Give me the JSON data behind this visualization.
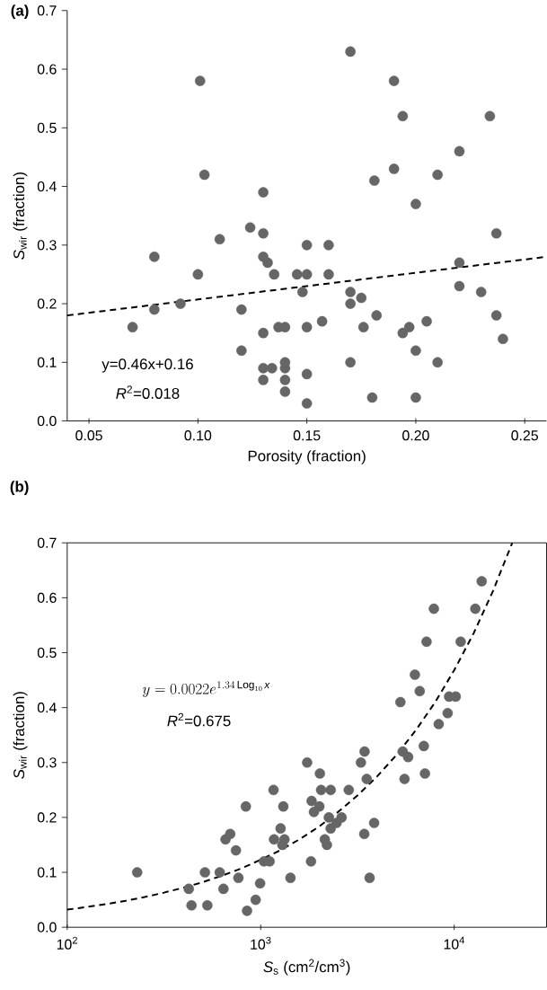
{
  "chart_data": [
    {
      "type": "scatter",
      "title": "(a)",
      "xlabel": "Porosity (fraction)",
      "ylabel": "*S*$_{wir}$ (fraction)",
      "xlim": [
        0.04,
        0.26
      ],
      "ylim": [
        0,
        0.7
      ],
      "xticks": [
        {
          "value": 0.05,
          "label": "0.05"
        },
        {
          "value": 0.1,
          "label": "0.10"
        },
        {
          "value": 0.15,
          "label": "0.15"
        },
        {
          "value": 0.2,
          "label": "0.20"
        },
        {
          "value": 0.25,
          "label": "0.25"
        }
      ],
      "yticks": [
        {
          "value": 0,
          "label": "0.0"
        },
        {
          "value": 0.1,
          "label": "0.1"
        },
        {
          "value": 0.2,
          "label": "0.2"
        },
        {
          "value": 0.3,
          "label": "0.3"
        },
        {
          "value": 0.4,
          "label": "0.4"
        },
        {
          "value": 0.5,
          "label": "0.5"
        },
        {
          "value": 0.6,
          "label": "0.6"
        },
        {
          "value": 0.7,
          "label": "0.7"
        }
      ],
      "series": [
        {
          "type": "scatter",
          "color": "#666666",
          "marker": "circle",
          "x": [
            0.17,
            0.19,
            0.194,
            0.234,
            0.22,
            0.19,
            0.21,
            0.181,
            0.2,
            0.237,
            0.15,
            0.16,
            0.1455,
            0.15,
            0.16,
            0.22,
            0.148,
            0.17,
            0.17,
            0.175,
            0.22,
            0.23,
            0.15,
            0.157,
            0.176,
            0.182,
            0.194,
            0.197,
            0.205,
            0.237,
            0.24,
            0.2,
            0.17,
            0.21,
            0.15,
            0.15,
            0.18,
            0.2,
            0.101,
            0.103,
            0.13,
            0.124,
            0.13,
            0.11,
            0.08,
            0.13,
            0.132,
            0.1,
            0.135,
            0.092,
            0.08,
            0.12,
            0.07,
            0.137,
            0.14,
            0.13,
            0.12,
            0.13,
            0.134,
            0.14,
            0.14,
            0.13,
            0.14,
            0.14
          ],
          "values": [
            0.63,
            0.58,
            0.52,
            0.52,
            0.46,
            0.43,
            0.42,
            0.41,
            0.37,
            0.32,
            0.3,
            0.3,
            0.25,
            0.25,
            0.25,
            0.27,
            0.22,
            0.22,
            0.2,
            0.21,
            0.23,
            0.22,
            0.16,
            0.17,
            0.16,
            0.18,
            0.15,
            0.16,
            0.17,
            0.18,
            0.14,
            0.12,
            0.1,
            0.1,
            0.08,
            0.03,
            0.04,
            0.04,
            0.58,
            0.42,
            0.39,
            0.33,
            0.32,
            0.31,
            0.28,
            0.28,
            0.27,
            0.25,
            0.25,
            0.2,
            0.19,
            0.19,
            0.16,
            0.16,
            0.16,
            0.15,
            0.12,
            0.09,
            0.09,
            0.1,
            0.09,
            0.07,
            0.07,
            0.05
          ]
        },
        {
          "type": "line",
          "color": "#000000",
          "marker": "none",
          "line_style": "dashed",
          "x": [
            0.04,
            0.26
          ],
          "values": [
            0.18,
            0.28
          ]
        }
      ],
      "annotations": [
        "y=0.46x+0.16",
        "*R*$^{2}$=0.018"
      ]
    },
    {
      "type": "scatter",
      "title": "(b)",
      "xlabel": "*S*$_{s}$ (cm$^{2}$/cm$^{3}$)",
      "ylabel": "*S*$_{wir}$ (fraction)",
      "log": "x",
      "xlim": [
        100,
        30000
      ],
      "ylim": [
        0,
        0.7
      ],
      "xticks": [
        {
          "value": 100,
          "label": "10$^{2}$"
        },
        {
          "value": 1000,
          "label": "10$^{3}$"
        },
        {
          "value": 10000,
          "label": "10$^{4}$"
        }
      ],
      "yticks": [
        {
          "value": 0,
          "label": "0.0"
        },
        {
          "value": 0.1,
          "label": "0.1"
        },
        {
          "value": 0.2,
          "label": "0.2"
        },
        {
          "value": 0.3,
          "label": "0.3"
        },
        {
          "value": 0.4,
          "label": "0.4"
        },
        {
          "value": 0.5,
          "label": "0.5"
        },
        {
          "value": 0.6,
          "label": "0.6"
        },
        {
          "value": 0.7,
          "label": "0.7"
        }
      ],
      "series": [
        {
          "type": "scatter",
          "color": "#666666",
          "marker": "circle",
          "x": [
            230,
            425,
            439,
            515,
            530,
            614,
            642,
            658,
            696,
            745,
            767,
            838,
            850,
            942,
            993,
            1040,
            1112,
            1165,
            1172,
            1267,
            1309,
            1327,
            1295,
            1425,
            1738,
            2023,
            2052,
            2300,
            1833,
            2010,
            1884,
            2852,
            2250,
            2618,
            2466,
            2300,
            2144,
            2198,
            1820,
            3442,
            3296,
            3532,
            3858,
            3430,
            3655,
            5272,
            6265,
            6635,
            7196,
            7853,
            10800,
            12860,
            13870,
            9414,
            10180,
            9250,
            8318,
            6966,
            7063,
            5420,
            5780,
            5537
          ],
          "values": [
            0.1,
            0.07,
            0.04,
            0.1,
            0.04,
            0.1,
            0.07,
            0.16,
            0.17,
            0.14,
            0.09,
            0.22,
            0.03,
            0.05,
            0.08,
            0.12,
            0.12,
            0.25,
            0.16,
            0.18,
            0.22,
            0.16,
            0.15,
            0.09,
            0.3,
            0.28,
            0.25,
            0.25,
            0.23,
            0.22,
            0.21,
            0.25,
            0.2,
            0.2,
            0.19,
            0.18,
            0.16,
            0.15,
            0.12,
            0.32,
            0.3,
            0.27,
            0.19,
            0.17,
            0.09,
            0.41,
            0.46,
            0.43,
            0.52,
            0.58,
            0.52,
            0.58,
            0.63,
            0.42,
            0.42,
            0.39,
            0.37,
            0.33,
            0.28,
            0.32,
            0.31,
            0.27
          ]
        },
        {
          "type": "line",
          "color": "#000000",
          "marker": "none",
          "line_style": "dashed",
          "x": [
            100,
            126,
            158,
            200,
            251,
            316,
            398,
            501,
            631,
            794,
            1000,
            1259,
            1585,
            1995,
            2512,
            3162,
            3981,
            5012,
            6310,
            7943,
            10000,
            12589,
            15849,
            19953
          ],
          "values": [
            0.032,
            0.037,
            0.042,
            0.048,
            0.055,
            0.063,
            0.072,
            0.082,
            0.094,
            0.107,
            0.123,
            0.14,
            0.16,
            0.183,
            0.21,
            0.24,
            0.274,
            0.313,
            0.358,
            0.409,
            0.468,
            0.535,
            0.612,
            0.7
          ]
        }
      ],
      "annotations": [
        "y=0.0022e^{1.34\\,\\mathrm{Log}_{10}\\,\\mathit{x}}",
        "*R*$^{2}$=0.675"
      ]
    }
  ]
}
